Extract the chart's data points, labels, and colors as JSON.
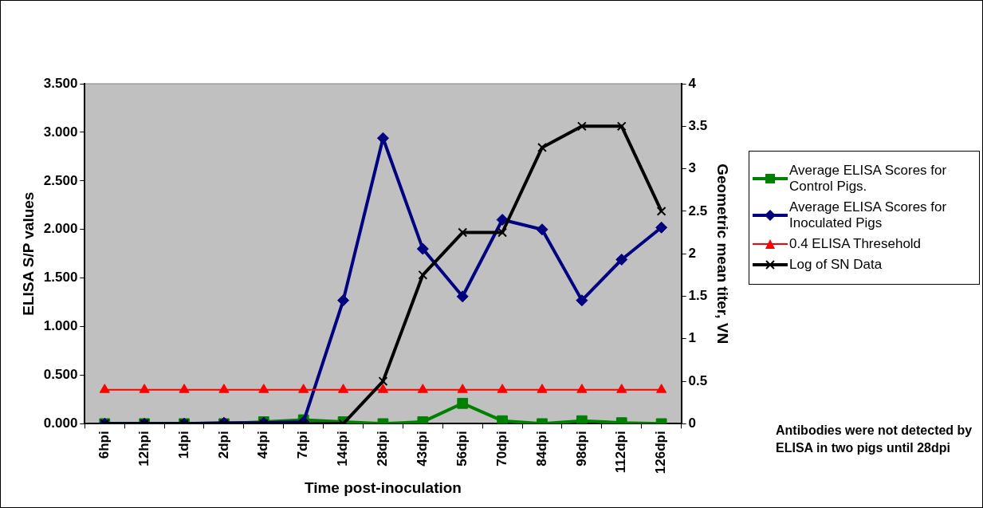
{
  "chart_data": {
    "type": "line",
    "categories": [
      "6hpi",
      "12hpi",
      "1dpi",
      "2dpi",
      "4dpi",
      "7dpi",
      "14dpi",
      "28dpi",
      "43dpi",
      "56dpi",
      "70dpi",
      "84dpi",
      "98dpi",
      "112dpi",
      "126dpi"
    ],
    "series": [
      {
        "name": "Average ELISA Scores for Control Pigs.",
        "color": "#008000",
        "marker": "square",
        "values": [
          0,
          0,
          0,
          0,
          0.02,
          0.04,
          0.02,
          0,
          0.02,
          0.21,
          0.03,
          0,
          0.03,
          0.01,
          0
        ]
      },
      {
        "name": "Average ELISA Scores for Inoculated Pigs",
        "color": "#000080",
        "marker": "diamond",
        "values": [
          0,
          0,
          0,
          0.01,
          0.01,
          0.02,
          1.27,
          2.94,
          1.8,
          1.31,
          2.1,
          2.0,
          1.27,
          1.69,
          2.02
        ]
      },
      {
        "name": "0.4 ELISA Thresehold",
        "color": "#ff0000",
        "marker": "triangle",
        "axis": "y2",
        "values": [
          0.4,
          0.4,
          0.4,
          0.4,
          0.4,
          0.4,
          0.4,
          0.4,
          0.4,
          0.4,
          0.4,
          0.4,
          0.4,
          0.4,
          0.4
        ]
      },
      {
        "name": "Log of SN Data",
        "color": "#000000",
        "marker": "cross",
        "axis": "y2",
        "values": [
          0,
          0,
          0,
          0,
          0,
          0,
          0,
          0.5,
          1.75,
          2.25,
          2.25,
          3.25,
          3.5,
          3.5,
          2.5
        ]
      }
    ],
    "xlabel": "Time post-inoculation",
    "ylabel": "ELISA S/P values",
    "y2label": "Geometric mean titer, VN",
    "ylim": [
      0,
      3.5
    ],
    "yticks": [
      {
        "value": 0,
        "label": "0.000"
      },
      {
        "value": 0.5,
        "label": "0.500"
      },
      {
        "value": 1,
        "label": "1.000"
      },
      {
        "value": 1.5,
        "label": "1.500"
      },
      {
        "value": 2,
        "label": "2.000"
      },
      {
        "value": 2.5,
        "label": "2.500"
      },
      {
        "value": 3,
        "label": "3.000"
      },
      {
        "value": 3.5,
        "label": "3.500"
      }
    ],
    "y2lim": [
      0,
      4
    ],
    "y2ticks": [
      0,
      0.5,
      1,
      1.5,
      2,
      2.5,
      3,
      3.5,
      4
    ],
    "grid": false,
    "legend": "right",
    "annotations": [
      "Antibodies were not detected by ELISA in two pigs until 28dpi"
    ]
  }
}
